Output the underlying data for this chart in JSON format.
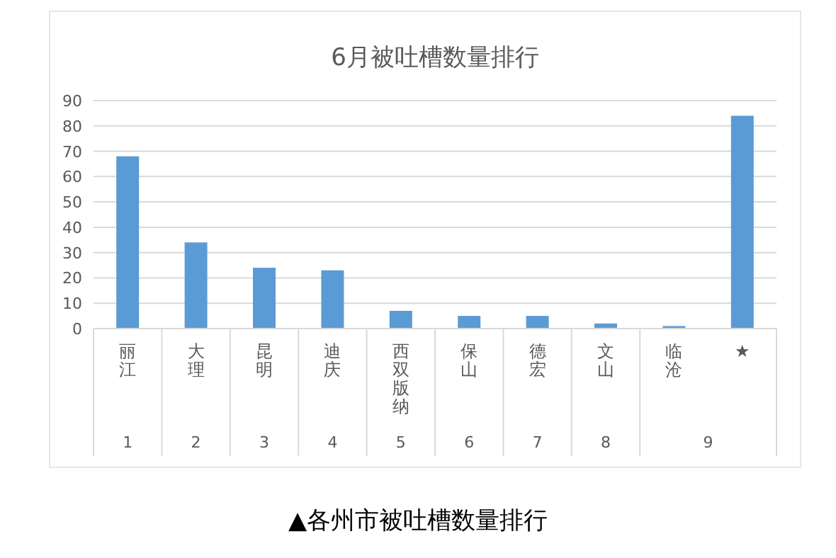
{
  "chart_data": {
    "type": "bar",
    "title": "6月被吐槽数量排行",
    "categories": [
      "丽江",
      "大理",
      "昆明",
      "迪庆",
      "西双版纳",
      "保山",
      "德宏",
      "文山",
      "临沧",
      "★"
    ],
    "values": [
      68,
      34,
      24,
      23,
      7,
      5,
      5,
      2,
      1,
      84
    ],
    "color": "#5b9bd5",
    "ylim": [
      0,
      90
    ],
    "yticks": [
      0,
      10,
      20,
      30,
      40,
      50,
      60,
      70,
      80,
      90
    ],
    "grid": "y",
    "annotations": [
      "▲各州市被吐槽数量排行",
      "1",
      "2",
      "3",
      "4",
      "5",
      "6",
      "7",
      "8",
      "9"
    ]
  }
}
